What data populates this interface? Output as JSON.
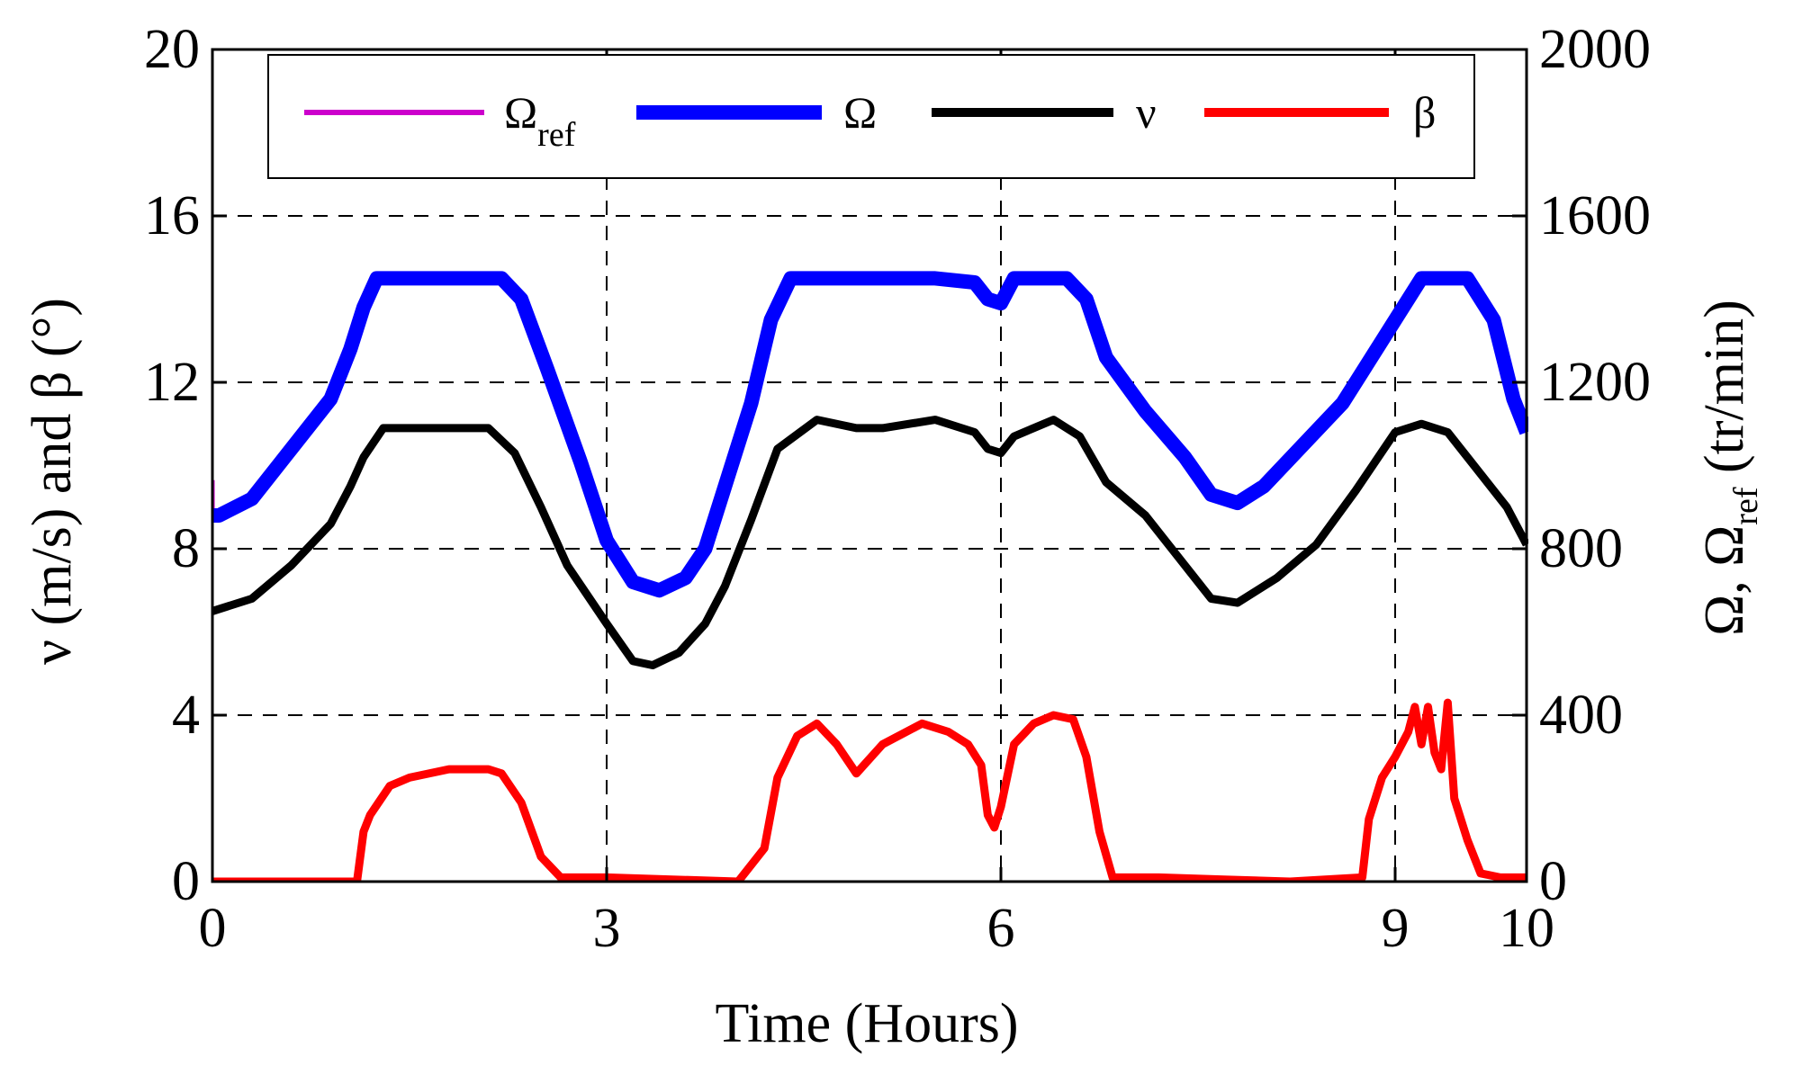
{
  "chart_data": {
    "type": "line",
    "xlabel": "Time (Hours)",
    "ylabel_left": "ν  (m/s)  and β (°)",
    "ylabel_right_main": "Ω, Ω",
    "ylabel_right_sub": "ref",
    "ylabel_right_units": "(tr/min)",
    "xlim": [
      0,
      10
    ],
    "ylim_left": [
      0,
      20
    ],
    "ylim_right": [
      0,
      2000
    ],
    "x_ticks": [
      "0",
      "3",
      "6",
      "9",
      "10"
    ],
    "x_tick_values": [
      0,
      3,
      6,
      9,
      10
    ],
    "y_ticks_left": [
      "0",
      "4",
      "8",
      "12",
      "16",
      "20"
    ],
    "y_tick_values_left": [
      0,
      4,
      8,
      12,
      16,
      20
    ],
    "y_ticks_right": [
      "0",
      "400",
      "800",
      "1200",
      "1600",
      "2000"
    ],
    "grid": true,
    "legend_position": "top",
    "legend": [
      {
        "main": "Ω",
        "sub": "ref",
        "color": "#CC00CC"
      },
      {
        "main": "Ω",
        "sub": "",
        "color": "#0000FF"
      },
      {
        "main": "ν",
        "sub": "",
        "color": "#000000"
      },
      {
        "main": "β",
        "sub": "",
        "color": "#FF0000"
      }
    ],
    "series": [
      {
        "name": "Ω_ref",
        "color": "#CC00CC",
        "axis": "right",
        "x": [
          0,
          0.001,
          0.03,
          0.3,
          0.6,
          0.9,
          1.05,
          1.15,
          1.25,
          1.5,
          2.2,
          2.35,
          2.55,
          2.8,
          3.0,
          3.2,
          3.4,
          3.6,
          3.75,
          3.9,
          4.1,
          4.25,
          4.4,
          4.6,
          5.0,
          5.5,
          5.8,
          5.9,
          6.0,
          6.1,
          6.5,
          6.65,
          6.8,
          7.1,
          7.4,
          7.6,
          7.8,
          8.0,
          8.3,
          8.6,
          8.8,
          9.0,
          9.2,
          9.4,
          9.55,
          9.75,
          9.9,
          10.0
        ],
        "values": [
          965,
          880,
          880,
          920,
          1040,
          1160,
          1280,
          1380,
          1450,
          1450,
          1450,
          1400,
          1230,
          1010,
          820,
          720,
          700,
          730,
          800,
          950,
          1150,
          1350,
          1450,
          1450,
          1450,
          1450,
          1440,
          1400,
          1390,
          1450,
          1450,
          1400,
          1260,
          1130,
          1020,
          930,
          910,
          950,
          1050,
          1150,
          1250,
          1350,
          1450,
          1450,
          1450,
          1350,
          1160,
          1080
        ]
      },
      {
        "name": "Ω",
        "color": "#0000FF",
        "axis": "right",
        "x": [
          0,
          0.05,
          0.3,
          0.6,
          0.9,
          1.05,
          1.15,
          1.25,
          1.5,
          2.2,
          2.35,
          2.55,
          2.8,
          3.0,
          3.2,
          3.4,
          3.6,
          3.75,
          3.9,
          4.1,
          4.25,
          4.4,
          4.6,
          5.0,
          5.5,
          5.8,
          5.9,
          6.0,
          6.1,
          6.5,
          6.65,
          6.8,
          7.1,
          7.4,
          7.6,
          7.8,
          8.0,
          8.3,
          8.6,
          8.8,
          9.0,
          9.2,
          9.4,
          9.55,
          9.75,
          9.9,
          10.0
        ],
        "values": [
          880,
          880,
          920,
          1040,
          1160,
          1280,
          1380,
          1450,
          1450,
          1450,
          1400,
          1230,
          1010,
          820,
          720,
          700,
          730,
          800,
          950,
          1150,
          1350,
          1450,
          1450,
          1450,
          1450,
          1440,
          1400,
          1390,
          1450,
          1450,
          1400,
          1260,
          1130,
          1020,
          930,
          910,
          950,
          1050,
          1150,
          1250,
          1350,
          1450,
          1450,
          1450,
          1350,
          1160,
          1080
        ]
      },
      {
        "name": "ν",
        "color": "#000000",
        "axis": "left",
        "x": [
          0,
          0.3,
          0.6,
          0.9,
          1.05,
          1.15,
          1.3,
          1.8,
          2.1,
          2.3,
          2.5,
          2.7,
          3.0,
          3.2,
          3.35,
          3.55,
          3.75,
          3.9,
          4.1,
          4.3,
          4.6,
          4.9,
          5.1,
          5.5,
          5.8,
          5.9,
          6.0,
          6.1,
          6.4,
          6.6,
          6.8,
          7.1,
          7.4,
          7.6,
          7.8,
          8.1,
          8.4,
          8.7,
          9.0,
          9.2,
          9.4,
          9.6,
          9.85,
          10.0
        ],
        "values": [
          6.5,
          6.8,
          7.6,
          8.6,
          9.5,
          10.2,
          10.9,
          10.9,
          10.9,
          10.3,
          9.0,
          7.6,
          6.2,
          5.3,
          5.2,
          5.5,
          6.2,
          7.1,
          8.7,
          10.4,
          11.1,
          10.9,
          10.9,
          11.1,
          10.8,
          10.4,
          10.3,
          10.7,
          11.1,
          10.7,
          9.6,
          8.8,
          7.6,
          6.8,
          6.7,
          7.3,
          8.1,
          9.4,
          10.8,
          11.0,
          10.8,
          10.0,
          9.0,
          8.1
        ]
      },
      {
        "name": "β",
        "color": "#FF0000",
        "axis": "left",
        "x": [
          0,
          1.1,
          1.15,
          1.2,
          1.35,
          1.5,
          1.8,
          2.1,
          2.2,
          2.35,
          2.5,
          2.65,
          3.0,
          3.5,
          4.0,
          4.2,
          4.3,
          4.45,
          4.6,
          4.75,
          4.9,
          5.1,
          5.4,
          5.6,
          5.75,
          5.85,
          5.9,
          5.95,
          6.0,
          6.1,
          6.25,
          6.4,
          6.55,
          6.65,
          6.75,
          6.85,
          7.2,
          7.7,
          8.2,
          8.75,
          8.8,
          8.9,
          9.0,
          9.1,
          9.15,
          9.2,
          9.25,
          9.3,
          9.35,
          9.4,
          9.45,
          9.55,
          9.65,
          9.8,
          10.0
        ],
        "values": [
          0,
          0,
          1.2,
          1.6,
          2.3,
          2.5,
          2.7,
          2.7,
          2.6,
          1.9,
          0.6,
          0.1,
          0.1,
          0.05,
          0,
          0.8,
          2.5,
          3.5,
          3.8,
          3.3,
          2.6,
          3.3,
          3.8,
          3.6,
          3.3,
          2.8,
          1.6,
          1.3,
          1.8,
          3.3,
          3.8,
          4.0,
          3.9,
          3.0,
          1.2,
          0.1,
          0.1,
          0.05,
          0,
          0.1,
          1.5,
          2.5,
          3.0,
          3.6,
          4.2,
          3.3,
          4.2,
          3.1,
          2.7,
          4.3,
          2.0,
          1.0,
          0.2,
          0.1,
          0.1
        ]
      }
    ]
  }
}
